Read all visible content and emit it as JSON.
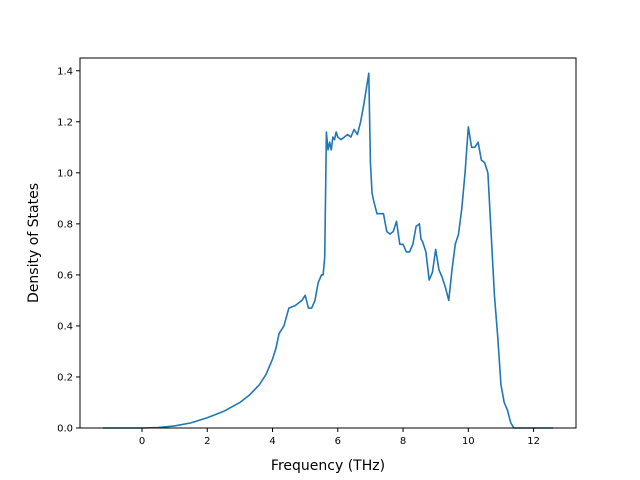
{
  "chart_data": {
    "type": "line",
    "title": "",
    "xlabel": "Frequency (THz)",
    "ylabel": "Density of States",
    "xlim": [
      -1.9,
      13.3
    ],
    "ylim": [
      0.0,
      1.45
    ],
    "xticks": [
      0,
      2,
      4,
      6,
      8,
      10,
      12
    ],
    "xtick_labels": [
      "0",
      "2",
      "4",
      "6",
      "8",
      "10",
      "12"
    ],
    "yticks": [
      0.0,
      0.2,
      0.4,
      0.6,
      0.8,
      1.0,
      1.2,
      1.4
    ],
    "ytick_labels": [
      "0.0",
      "0.2",
      "0.4",
      "0.6",
      "0.8",
      "1.0",
      "1.2",
      "1.4"
    ],
    "grid": false,
    "series": [
      {
        "color": "#1f77b4",
        "x": [
          -1.2,
          -0.5,
          0.0,
          0.5,
          1.0,
          1.5,
          2.0,
          2.5,
          3.0,
          3.3,
          3.6,
          3.8,
          4.0,
          4.1,
          4.2,
          4.35,
          4.5,
          4.7,
          4.9,
          5.0,
          5.1,
          5.2,
          5.3,
          5.4,
          5.5,
          5.55,
          5.6,
          5.65,
          5.7,
          5.75,
          5.8,
          5.85,
          5.9,
          5.95,
          6.0,
          6.1,
          6.2,
          6.3,
          6.4,
          6.5,
          6.6,
          6.7,
          6.8,
          6.9,
          6.95,
          7.0,
          7.05,
          7.1,
          7.2,
          7.3,
          7.4,
          7.5,
          7.6,
          7.7,
          7.8,
          7.9,
          8.0,
          8.1,
          8.2,
          8.3,
          8.4,
          8.5,
          8.55,
          8.6,
          8.7,
          8.8,
          8.9,
          9.0,
          9.1,
          9.2,
          9.3,
          9.4,
          9.5,
          9.6,
          9.7,
          9.8,
          9.9,
          10.0,
          10.1,
          10.2,
          10.3,
          10.4,
          10.5,
          10.6,
          10.7,
          10.8,
          10.9,
          11.0,
          11.1,
          11.2,
          11.3,
          11.4,
          11.5,
          11.6,
          12.0,
          12.6
        ],
        "y": [
          0.0,
          0.0,
          0.0,
          0.002,
          0.008,
          0.02,
          0.04,
          0.065,
          0.1,
          0.13,
          0.17,
          0.21,
          0.27,
          0.31,
          0.37,
          0.4,
          0.47,
          0.48,
          0.5,
          0.52,
          0.47,
          0.47,
          0.5,
          0.57,
          0.6,
          0.6,
          0.67,
          1.16,
          1.09,
          1.12,
          1.09,
          1.14,
          1.13,
          1.16,
          1.14,
          1.13,
          1.14,
          1.15,
          1.14,
          1.17,
          1.15,
          1.2,
          1.27,
          1.35,
          1.39,
          1.04,
          0.92,
          0.89,
          0.84,
          0.84,
          0.84,
          0.77,
          0.76,
          0.77,
          0.81,
          0.72,
          0.72,
          0.69,
          0.69,
          0.72,
          0.79,
          0.8,
          0.74,
          0.73,
          0.69,
          0.58,
          0.61,
          0.7,
          0.62,
          0.59,
          0.55,
          0.5,
          0.62,
          0.72,
          0.76,
          0.86,
          1.0,
          1.18,
          1.1,
          1.1,
          1.12,
          1.05,
          1.04,
          1.0,
          0.76,
          0.52,
          0.36,
          0.17,
          0.1,
          0.07,
          0.02,
          0.0,
          0.0,
          0.0,
          0.0,
          0.0
        ]
      }
    ]
  }
}
